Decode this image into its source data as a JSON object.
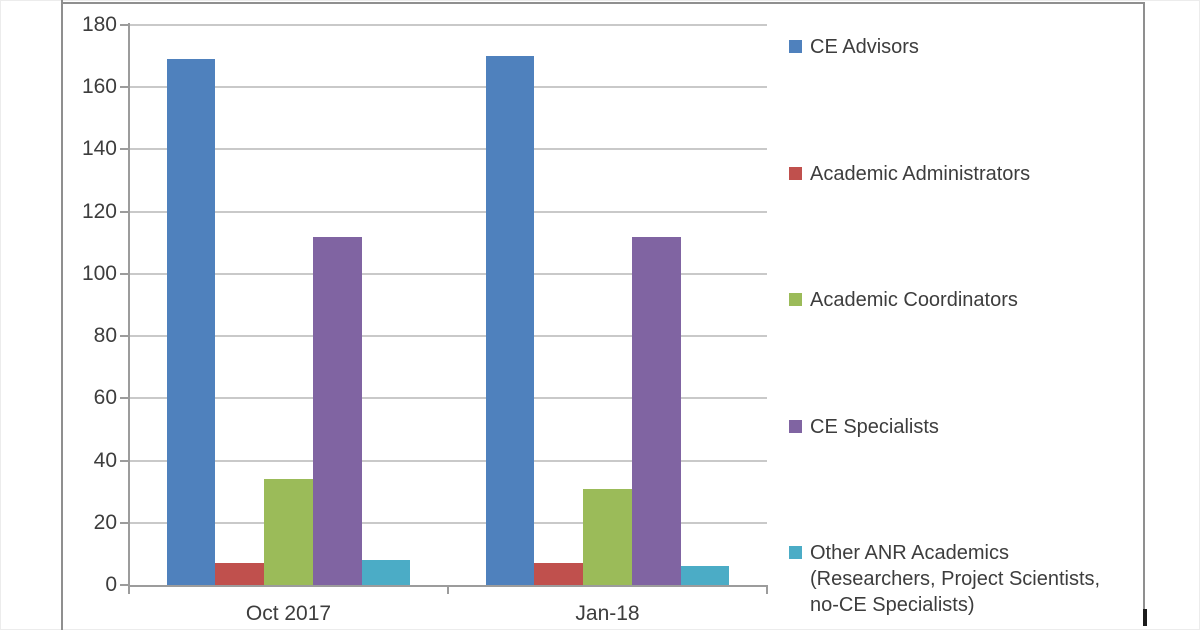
{
  "chart_data": {
    "type": "bar",
    "title": "",
    "xlabel": "",
    "ylabel": "",
    "categories": [
      "Oct 2017",
      "Jan-18"
    ],
    "series": [
      {
        "name": "CE Advisors",
        "color": "#4F81BD",
        "values": [
          169,
          170
        ],
        "legend_lines": [
          "CE Advisors"
        ]
      },
      {
        "name": "Academic Administrators",
        "color": "#C0504D",
        "values": [
          7,
          7
        ],
        "legend_lines": [
          "Academic Administrators"
        ]
      },
      {
        "name": "Academic Coordinators",
        "color": "#9BBB59",
        "values": [
          34,
          31
        ],
        "legend_lines": [
          "Academic Coordinators"
        ]
      },
      {
        "name": "CE Specialists",
        "color": "#8064A2",
        "values": [
          112,
          112
        ],
        "legend_lines": [
          "CE Specialists"
        ]
      },
      {
        "name": "Other ANR Academics (Researchers, Project Scientists, no-CE Specialists)",
        "color": "#4BACC6",
        "values": [
          8,
          6
        ],
        "legend_lines": [
          "Other ANR Academics",
          "(Researchers, Project Scientists,",
          "no-CE Specialists)"
        ]
      }
    ],
    "ylim": [
      0,
      180
    ],
    "yticks": [
      0,
      20,
      40,
      60,
      80,
      100,
      120,
      140,
      160,
      180
    ],
    "grid": true,
    "legend_position": "right"
  },
  "styles": {
    "text_color": "#3d3d3d",
    "gridline_color": "#c9c9c9",
    "axis_color": "#9c9c9c",
    "frame_color": "#8f8f8f",
    "background": "#ffffff"
  }
}
